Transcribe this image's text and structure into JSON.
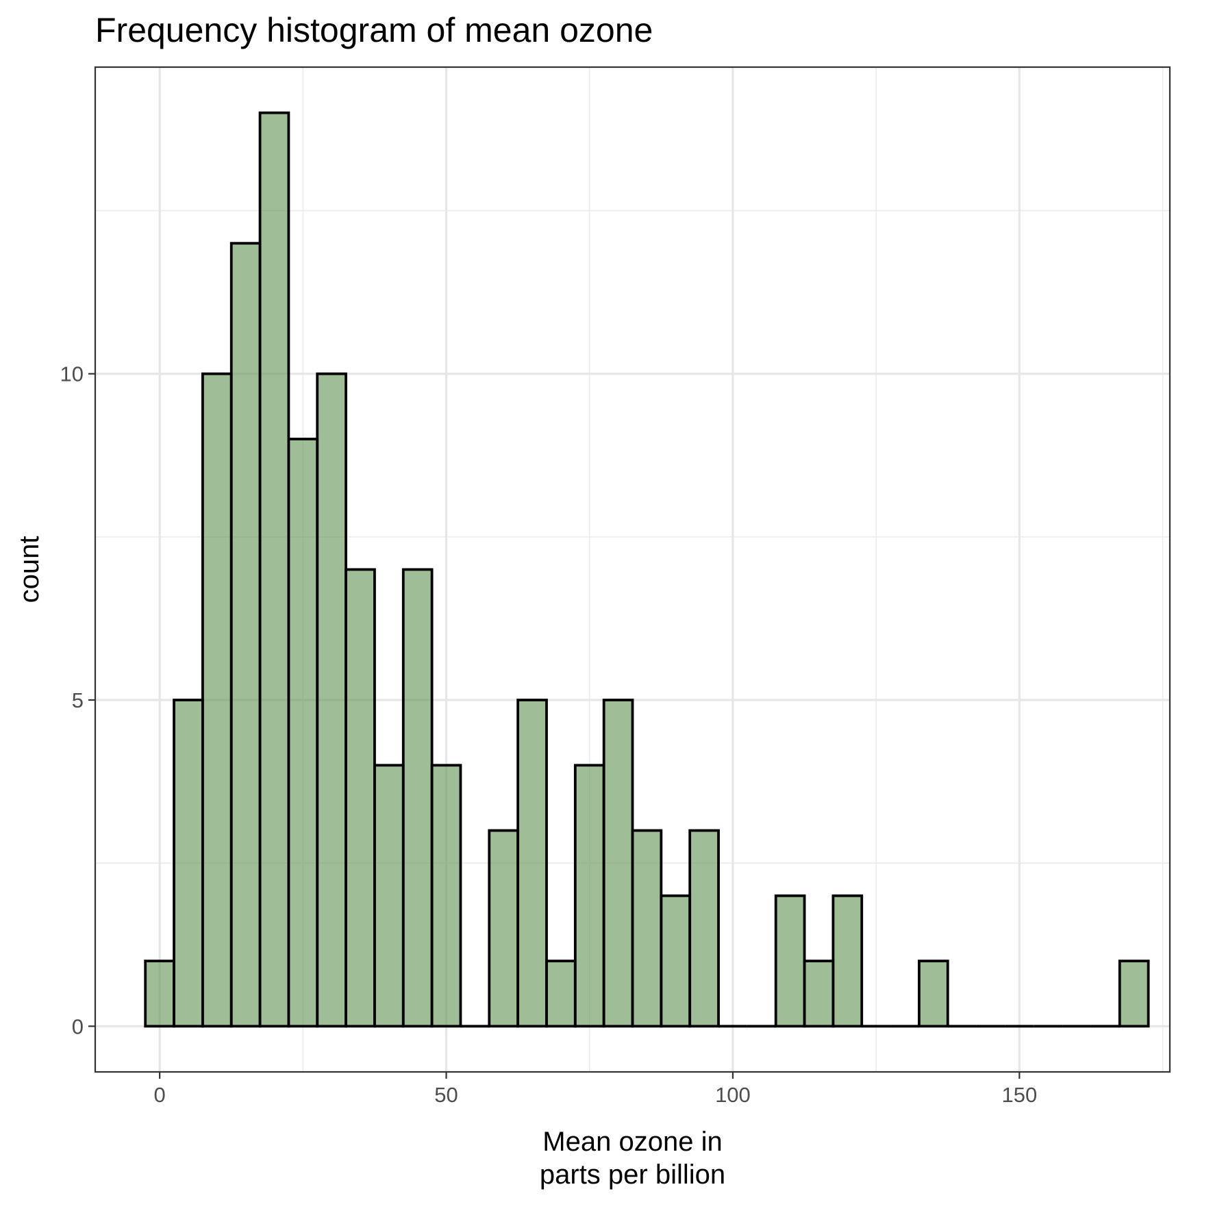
{
  "chart_data": {
    "type": "bar",
    "title": "Frequency histogram of mean ozone",
    "xlabel": "Mean ozone in\nparts per billion",
    "ylabel": "count",
    "bin_width": 5,
    "bins": [
      {
        "x": 0,
        "count": 1
      },
      {
        "x": 5,
        "count": 5
      },
      {
        "x": 10,
        "count": 10
      },
      {
        "x": 15,
        "count": 12
      },
      {
        "x": 20,
        "count": 14
      },
      {
        "x": 25,
        "count": 9
      },
      {
        "x": 30,
        "count": 10
      },
      {
        "x": 35,
        "count": 7
      },
      {
        "x": 40,
        "count": 4
      },
      {
        "x": 45,
        "count": 7
      },
      {
        "x": 50,
        "count": 4
      },
      {
        "x": 55,
        "count": 0
      },
      {
        "x": 60,
        "count": 3
      },
      {
        "x": 65,
        "count": 5
      },
      {
        "x": 70,
        "count": 1
      },
      {
        "x": 75,
        "count": 4
      },
      {
        "x": 80,
        "count": 5
      },
      {
        "x": 85,
        "count": 3
      },
      {
        "x": 90,
        "count": 2
      },
      {
        "x": 95,
        "count": 3
      },
      {
        "x": 100,
        "count": 0
      },
      {
        "x": 105,
        "count": 0
      },
      {
        "x": 110,
        "count": 2
      },
      {
        "x": 115,
        "count": 1
      },
      {
        "x": 120,
        "count": 2
      },
      {
        "x": 125,
        "count": 0
      },
      {
        "x": 130,
        "count": 0
      },
      {
        "x": 135,
        "count": 1
      },
      {
        "x": 140,
        "count": 0
      },
      {
        "x": 145,
        "count": 0
      },
      {
        "x": 150,
        "count": 0
      },
      {
        "x": 155,
        "count": 0
      },
      {
        "x": 160,
        "count": 0
      },
      {
        "x": 165,
        "count": 0
      },
      {
        "x": 170,
        "count": 1
      }
    ],
    "xlim": [
      -11.25,
      176.25
    ],
    "ylim": [
      -0.7,
      14.7
    ],
    "x_ticks": [
      0,
      50,
      100,
      150
    ],
    "x_tick_labels": [
      "0",
      "50",
      "100",
      "150"
    ],
    "y_ticks": [
      0,
      5,
      10
    ],
    "y_tick_labels": [
      "0",
      "5",
      "10"
    ],
    "fill_color": "#6b9a5e",
    "bar_outline_color": "#000000",
    "grid": true,
    "legend": "none"
  }
}
